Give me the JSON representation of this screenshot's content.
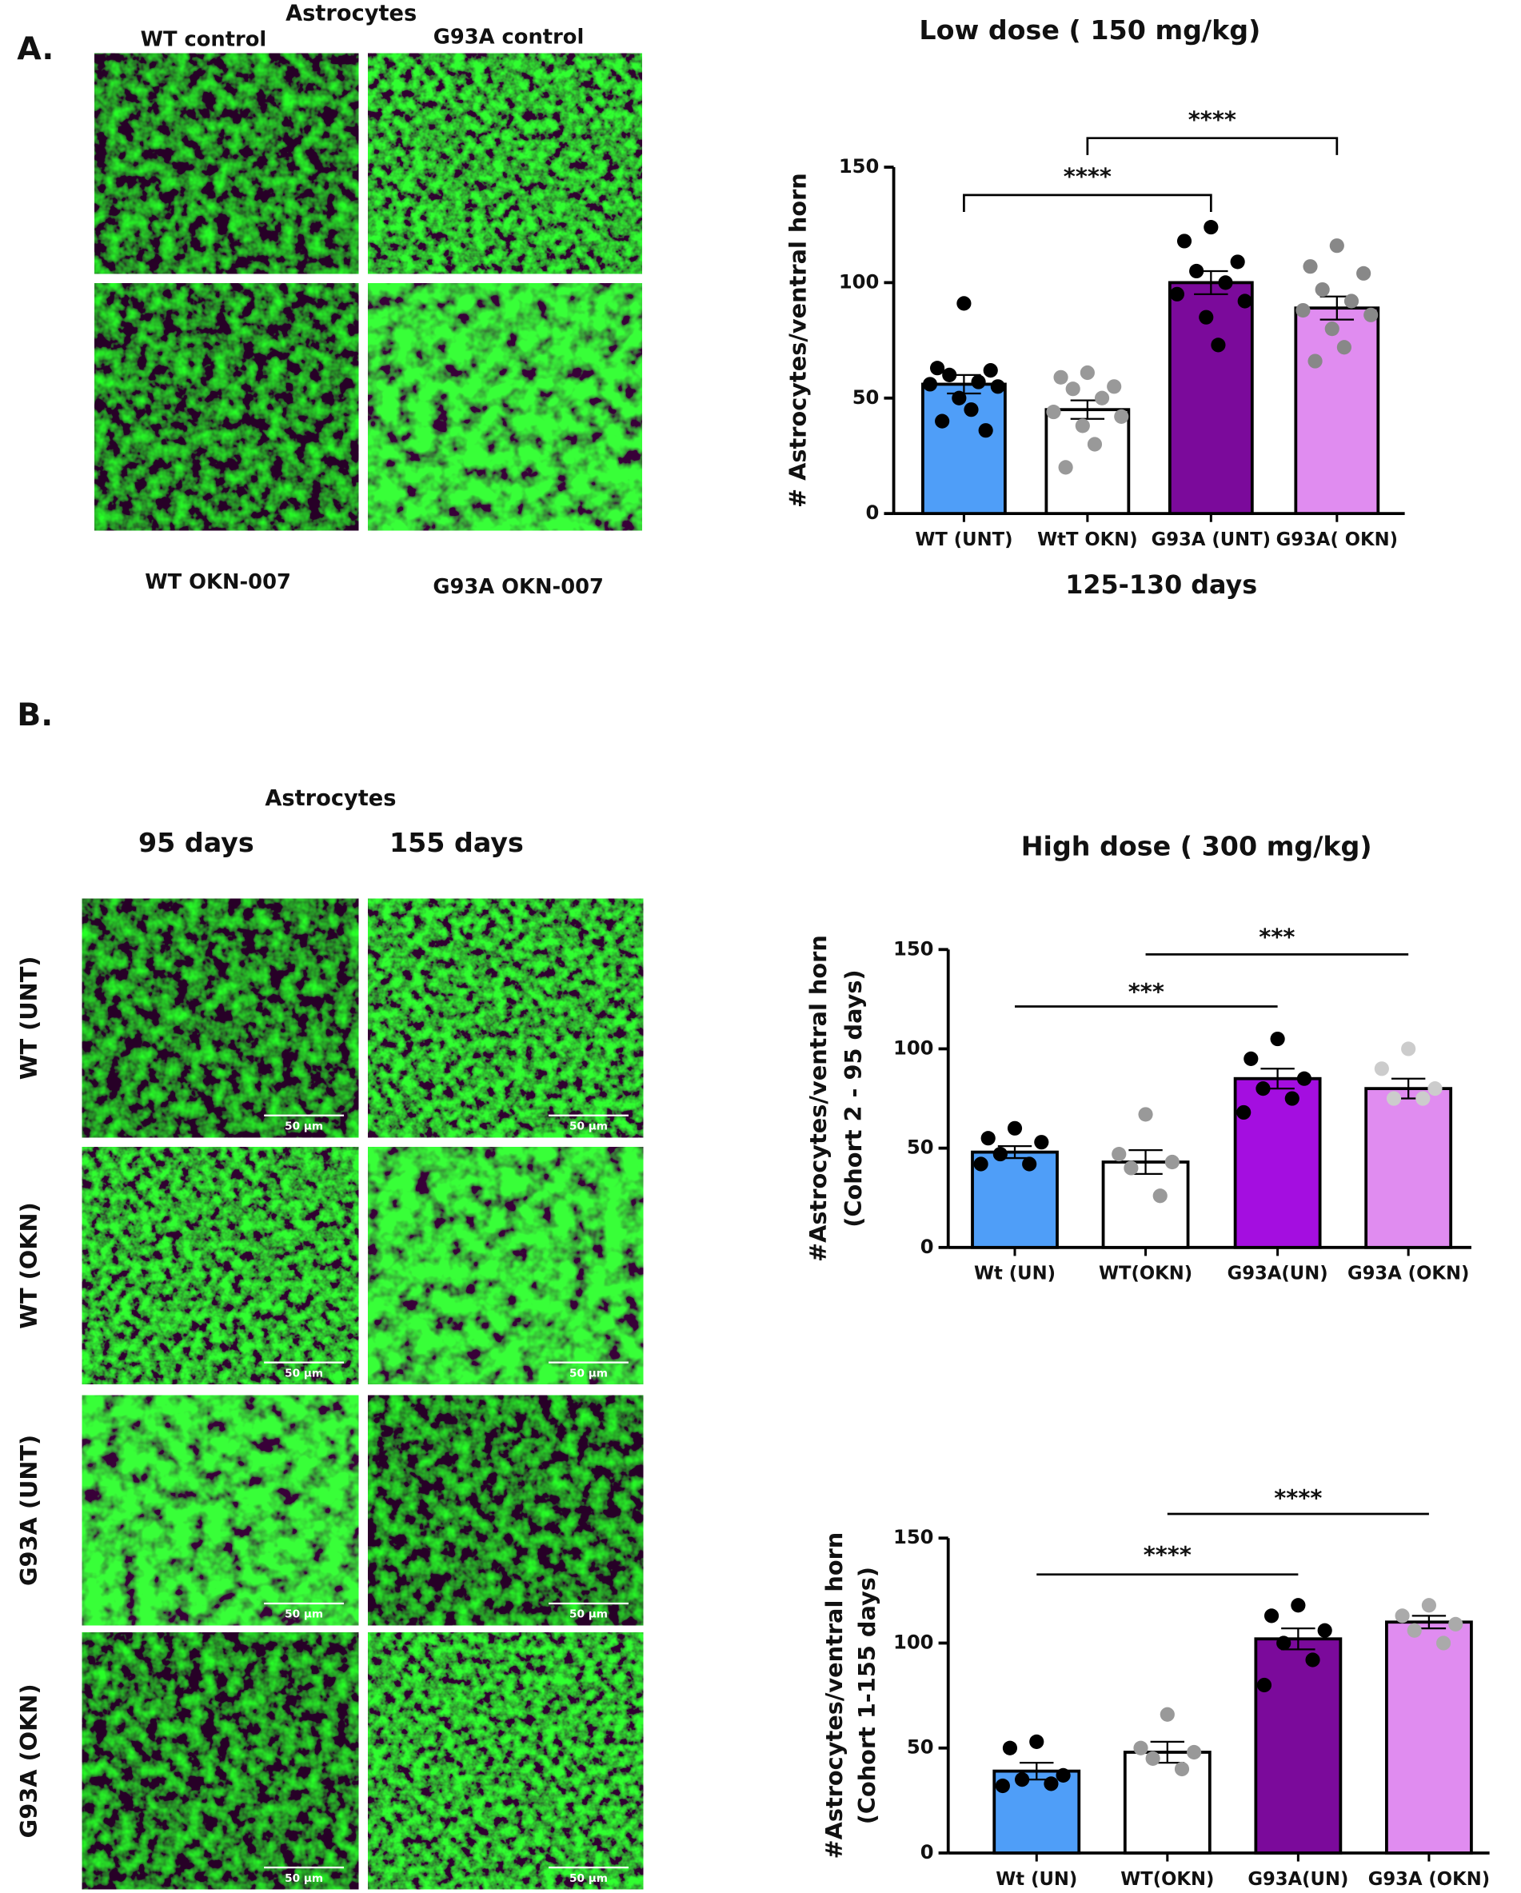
{
  "panel_a": {
    "label": "A.",
    "heading": "Astrocytes",
    "images": [
      "WT control",
      "G93A control",
      "WT OKN-007",
      "G93A OKN-007"
    ]
  },
  "panel_b": {
    "label": "B.",
    "heading": "Astrocytes",
    "columns": [
      "95 days",
      "155 days"
    ],
    "rows": [
      "WT (UNT)",
      "WT (OKN)",
      "G93A (UNT)",
      "G93A (OKN)"
    ],
    "scale_bar": "50 µm"
  },
  "chart_data": [
    {
      "type": "bar",
      "title": "Low dose ( 150 mg/kg)",
      "y_label": [
        "# Astrocytes/ventral horn"
      ],
      "x_label": "125-130 days",
      "categories": [
        "WT (UNT)",
        "WtT OKN)",
        "G93A (UNT)",
        "G93A( OKN)"
      ],
      "values": [
        56,
        45,
        100,
        89
      ],
      "errors": [
        4,
        4,
        5,
        5
      ],
      "colors": [
        "#4f9ef8",
        "#ffffff",
        "#7b0a9b",
        "#e08cf0"
      ],
      "point_colors": [
        "#000000",
        "#999999",
        "#000000",
        "#888888"
      ],
      "points": [
        [
          91,
          63,
          62,
          60,
          57,
          56,
          55,
          50,
          45,
          40,
          36
        ],
        [
          61,
          59,
          55,
          54,
          50,
          44,
          42,
          38,
          30,
          20
        ],
        [
          124,
          118,
          109,
          105,
          100,
          95,
          92,
          85,
          73
        ],
        [
          116,
          107,
          104,
          97,
          92,
          88,
          86,
          80,
          72,
          66
        ]
      ],
      "ylim": [
        0,
        150
      ],
      "yticks": [
        0,
        50,
        100,
        150
      ],
      "significance": [
        {
          "label": "****",
          "between": [
            "WT (UNT)",
            "G93A (UNT)"
          ]
        },
        {
          "label": "****",
          "between": [
            "WtT OKN)",
            "G93A( OKN)"
          ]
        }
      ]
    },
    {
      "type": "bar",
      "title": "High dose ( 300 mg/kg)",
      "y_label": [
        "#Astrocytes/ventral horn",
        "(Cohort 2 - 95 days)"
      ],
      "categories": [
        "Wt (UN)",
        "WT(OKN)",
        "G93A(UN)",
        "G93A (OKN)"
      ],
      "values": [
        48,
        43,
        85,
        80
      ],
      "errors": [
        3,
        6,
        5,
        5
      ],
      "colors": [
        "#4f9ef8",
        "#ffffff",
        "#a40ee0",
        "#e08cf0"
      ],
      "point_colors": [
        "#000000",
        "#999999",
        "#000000",
        "#cccccc"
      ],
      "points": [
        [
          60,
          55,
          53,
          47,
          42,
          42
        ],
        [
          67,
          47,
          43,
          40,
          26
        ],
        [
          105,
          95,
          85,
          80,
          75,
          68
        ],
        [
          100,
          90,
          80,
          75,
          75
        ]
      ],
      "ylim": [
        0,
        150
      ],
      "yticks": [
        0,
        50,
        100,
        150
      ],
      "significance": [
        {
          "label": "***",
          "between": [
            "Wt (UN)",
            "G93A(UN)"
          ]
        },
        {
          "label": "***",
          "between": [
            "WT(OKN)",
            "G93A (OKN)"
          ]
        }
      ]
    },
    {
      "type": "bar",
      "y_label": [
        "#Astrocytes/ventral horn",
        "(Cohort 1-155 days)"
      ],
      "categories": [
        "Wt (UN)",
        "WT(OKN)",
        "G93A(UN)",
        "G93A (OKN)"
      ],
      "values": [
        39,
        48,
        102,
        110
      ],
      "errors": [
        4,
        5,
        5,
        3
      ],
      "colors": [
        "#4f9ef8",
        "#ffffff",
        "#7b0a9b",
        "#e08cf0"
      ],
      "point_colors": [
        "#000000",
        "#999999",
        "#000000",
        "#aaaaaa"
      ],
      "points": [
        [
          53,
          50,
          37,
          35,
          33,
          32
        ],
        [
          66,
          50,
          48,
          45,
          40
        ],
        [
          118,
          113,
          106,
          100,
          92,
          80
        ],
        [
          118,
          113,
          109,
          106,
          100
        ]
      ],
      "ylim": [
        0,
        150
      ],
      "yticks": [
        0,
        50,
        100,
        150
      ],
      "significance": [
        {
          "label": "****",
          "between": [
            "Wt (UN)",
            "G93A(UN)"
          ]
        },
        {
          "label": "****",
          "between": [
            "WT(OKN)",
            "G93A (OKN)"
          ]
        }
      ]
    }
  ]
}
